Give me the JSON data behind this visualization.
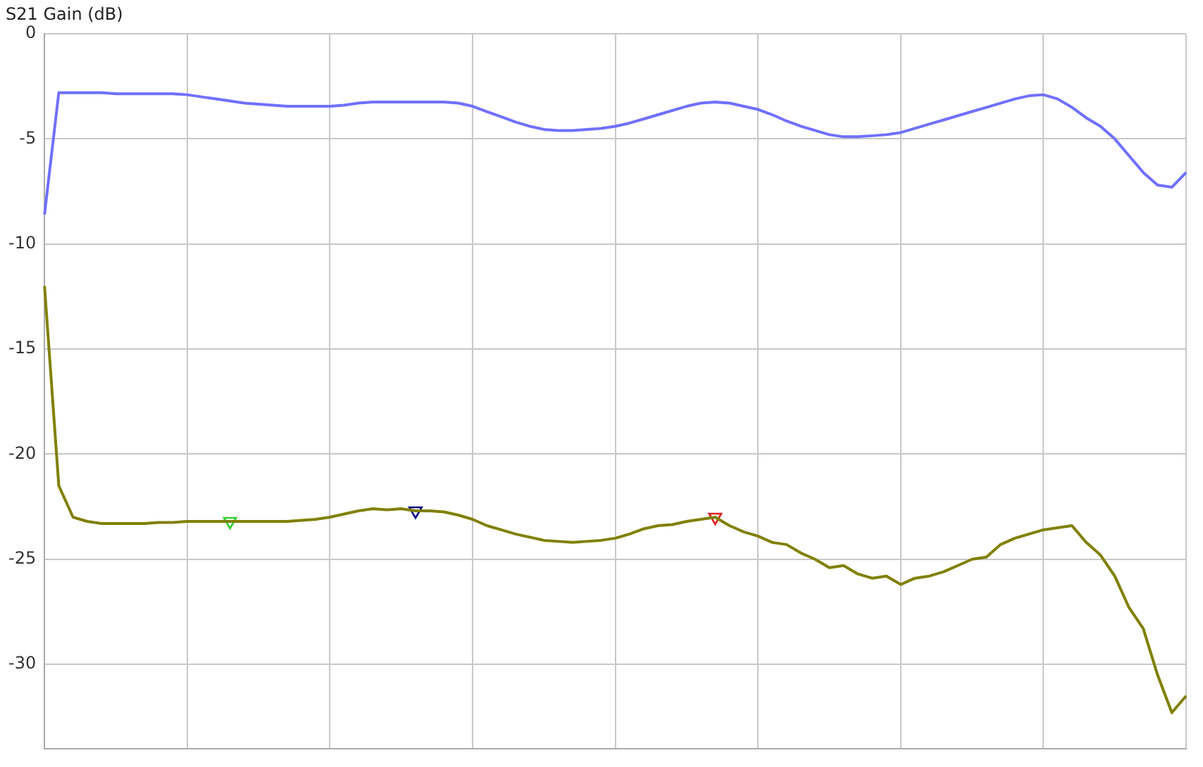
{
  "chart_data": {
    "type": "line",
    "ylabel": "S21 Gain (dB)",
    "categories": [
      null,
      null,
      null,
      null,
      null,
      null,
      null,
      null,
      null,
      null,
      null,
      null,
      null,
      null,
      null,
      null,
      null,
      null,
      null,
      null,
      null,
      null,
      null,
      null,
      null,
      null,
      null,
      null,
      null,
      null,
      null,
      null,
      null,
      null,
      null,
      null,
      null,
      null,
      null,
      null,
      null,
      null,
      null,
      null,
      null,
      null,
      null,
      null,
      null,
      null,
      null,
      null,
      null,
      null,
      null,
      null,
      null,
      null,
      null,
      null,
      null,
      null,
      null,
      null,
      null,
      null,
      null,
      null,
      null,
      null,
      null,
      null,
      null,
      null,
      null,
      null,
      null,
      null,
      null,
      null,
      null
    ],
    "series": [
      {
        "color": "#7070ff",
        "values": [
          -8.6,
          -2.8,
          -2.8,
          -2.8,
          -2.8,
          -2.85,
          -2.85,
          -2.85,
          -2.85,
          -2.85,
          -2.9,
          -3.0,
          -3.1,
          -3.2,
          -3.3,
          -3.35,
          -3.4,
          -3.45,
          -3.45,
          -3.45,
          -3.45,
          -3.4,
          -3.3,
          -3.25,
          -3.25,
          -3.25,
          -3.25,
          -3.25,
          -3.25,
          -3.3,
          -3.45,
          -3.7,
          -3.95,
          -4.2,
          -4.4,
          -4.55,
          -4.6,
          -4.6,
          -4.55,
          -4.5,
          -4.4,
          -4.25,
          -4.05,
          -3.85,
          -3.65,
          -3.45,
          -3.3,
          -3.25,
          -3.3,
          -3.45,
          -3.6,
          -3.85,
          -4.15,
          -4.4,
          -4.6,
          -4.8,
          -4.9,
          -4.9,
          -4.85,
          -4.8,
          -4.7,
          -4.5,
          -4.3,
          -4.1,
          -3.9,
          -3.7,
          -3.5,
          -3.3,
          -3.1,
          -2.95,
          -2.9,
          -3.1,
          -3.5,
          -4.0,
          -4.4,
          -5.0,
          -5.8,
          -6.6,
          -7.2,
          -7.3,
          -6.6
        ]
      },
      {
        "color": "#808000",
        "values": [
          -12,
          -21.5,
          -23.0,
          -23.2,
          -23.3,
          -23.3,
          -23.3,
          -23.3,
          -23.25,
          -23.25,
          -23.2,
          -23.2,
          -23.2,
          -23.2,
          -23.2,
          -23.2,
          -23.2,
          -23.2,
          -23.15,
          -23.1,
          -23.0,
          -22.85,
          -22.7,
          -22.6,
          -22.65,
          -22.6,
          -22.7,
          -22.7,
          -22.75,
          -22.9,
          -23.1,
          -23.4,
          -23.6,
          -23.8,
          -23.95,
          -24.1,
          -24.15,
          -24.2,
          -24.15,
          -24.1,
          -24.0,
          -23.8,
          -23.55,
          -23.4,
          -23.35,
          -23.2,
          -23.1,
          -23.0,
          -23.4,
          -23.7,
          -23.9,
          -24.2,
          -24.3,
          -24.7,
          -25.0,
          -25.4,
          -25.3,
          -25.7,
          -25.9,
          -25.8,
          -26.2,
          -25.9,
          -25.8,
          -25.6,
          -25.3,
          -25.0,
          -24.9,
          -24.3,
          -24.0,
          -23.8,
          -23.6,
          -23.5,
          -23.4,
          -24.2,
          -24.8,
          -25.8,
          -27.3,
          -28.3,
          -30.5,
          -32.3,
          -31.5
        ]
      },
      {
        "type": "scatter",
        "marker": "triangle",
        "colors": [
          null,
          null,
          null,
          null,
          null,
          null,
          null,
          null,
          null,
          null,
          null,
          null,
          null,
          "#30d030",
          null,
          null,
          null,
          null,
          null,
          null,
          null,
          null,
          null,
          null,
          null,
          null,
          "#000080",
          null,
          null,
          null,
          null,
          null,
          null,
          null,
          null,
          null,
          null,
          null,
          null,
          null,
          null,
          null,
          null,
          null,
          null,
          null,
          null,
          "#e02020",
          null,
          null,
          null,
          null,
          null,
          null,
          null,
          null,
          null,
          null,
          null,
          null,
          null,
          null,
          null,
          null,
          null,
          null,
          null,
          null,
          null,
          null,
          null,
          null,
          null,
          null,
          null,
          null,
          null,
          null,
          null,
          null,
          null
        ],
        "values": [
          null,
          null,
          null,
          null,
          null,
          null,
          null,
          null,
          null,
          null,
          null,
          null,
          null,
          -23.2,
          null,
          null,
          null,
          null,
          null,
          null,
          null,
          null,
          null,
          null,
          null,
          null,
          -22.7,
          null,
          null,
          null,
          null,
          null,
          null,
          null,
          null,
          null,
          null,
          null,
          null,
          null,
          null,
          null,
          null,
          null,
          null,
          null,
          null,
          -23.0,
          null,
          null,
          null,
          null,
          null,
          null,
          null,
          null,
          null,
          null,
          null,
          null,
          null,
          null,
          null,
          null,
          null,
          null,
          null,
          null,
          null,
          null,
          null,
          null,
          null,
          null,
          null,
          null,
          null,
          null,
          null,
          null,
          null
        ]
      }
    ],
    "ylim": [
      -34,
      0
    ],
    "yticks": [
      0,
      -5,
      -10,
      -15,
      -20,
      -25,
      -30
    ],
    "grid": true,
    "tick_labels": "y",
    "marker": "none",
    "legend": false
  }
}
